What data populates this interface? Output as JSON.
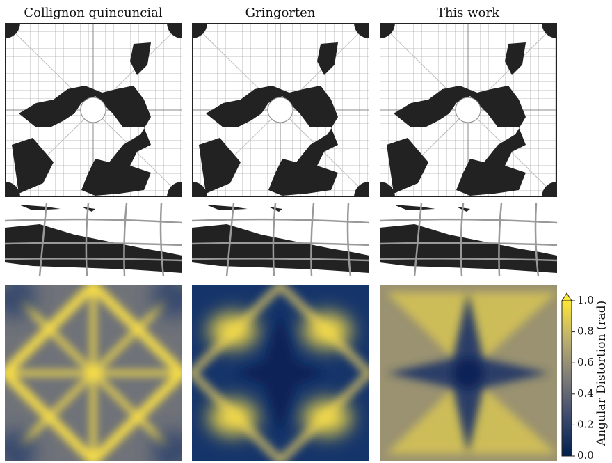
{
  "columns": [
    "Collignon quincuncial",
    "Gringorten",
    "This work"
  ],
  "colorbar": {
    "label": "Angular Distortion (rad)",
    "lim": [
      0,
      1
    ],
    "ticks": [
      {
        "value": 0,
        "label": "0.0"
      },
      0.2,
      0.4,
      0.6,
      0.8,
      {
        "value": 1,
        "label": "1.0"
      }
    ]
  }
}
